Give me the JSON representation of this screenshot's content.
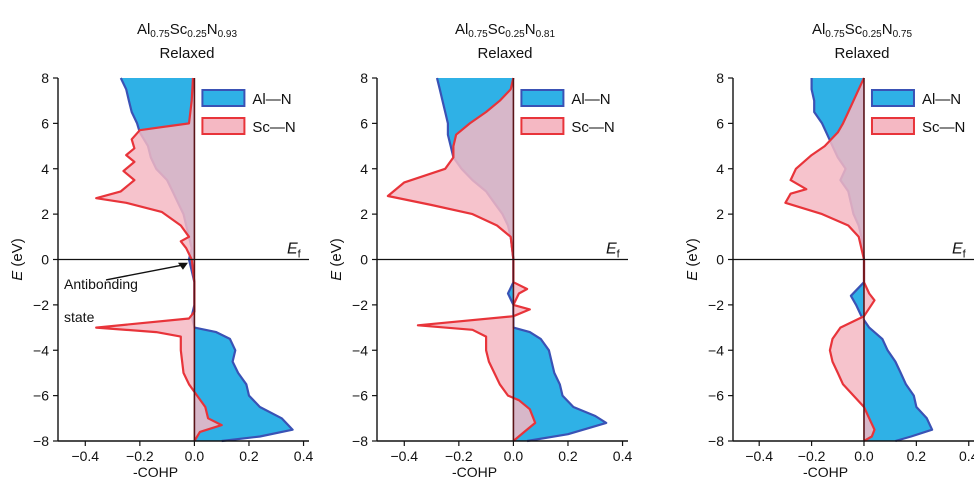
{
  "figure": {
    "panels": [
      {
        "title": {
          "el1": "Al",
          "s1": "0.75",
          "el2": "Sc",
          "s2": "0.25",
          "el3": "N",
          "s3": "0.93",
          "line2": "Relaxed"
        }
      },
      {
        "title": {
          "el1": "Al",
          "s1": "0.75",
          "el2": "Sc",
          "s2": "0.25",
          "el3": "N",
          "s3": "0.81",
          "line2": "Relaxed"
        }
      },
      {
        "title": {
          "el1": "Al",
          "s1": "0.75",
          "el2": "Sc",
          "s2": "0.25",
          "el3": "N",
          "s3": "0.75",
          "line2": "Relaxed"
        }
      }
    ]
  },
  "chart_data": [
    {
      "type": "area",
      "title": "Al0.75Sc0.25N0.93 Relaxed",
      "xlabel": "-COHP",
      "ylabel": "E (eV)",
      "xlim": [
        -0.5,
        0.42
      ],
      "ylim": [
        -8,
        8
      ],
      "xticks": [
        -0.4,
        -0.2,
        0.0,
        0.2,
        0.4
      ],
      "yticks": [
        -8,
        -6,
        -4,
        -2,
        0,
        2,
        4,
        6,
        8
      ],
      "fermi_label": "E_f",
      "legend": {
        "position": "top-right",
        "entries": [
          "Al—N",
          "Sc—N"
        ]
      },
      "annotation": {
        "text_line1": "Antibonding",
        "text_line2": "state",
        "points_to": [
          -0.02,
          -0.1
        ]
      },
      "colors": {
        "Al—N": {
          "fill": "#2fb1e6",
          "edge": "#3a52b5"
        },
        "Sc—N": {
          "fill": "#f5b8c3",
          "edge": "#e8343a"
        }
      },
      "series": [
        {
          "name": "Al—N",
          "points": [
            [
              -0.27,
              8
            ],
            [
              -0.25,
              7.5
            ],
            [
              -0.24,
              7.0
            ],
            [
              -0.23,
              6.5
            ],
            [
              -0.21,
              6.0
            ],
            [
              -0.2,
              5.6
            ],
            [
              -0.17,
              5.0
            ],
            [
              -0.16,
              4.5
            ],
            [
              -0.14,
              4.0
            ],
            [
              -0.1,
              3.5
            ],
            [
              -0.08,
              3.0
            ],
            [
              -0.06,
              2.5
            ],
            [
              -0.04,
              2.0
            ],
            [
              -0.03,
              1.5
            ],
            [
              -0.02,
              1.0
            ],
            [
              -0.01,
              0.5
            ],
            [
              -0.02,
              0
            ],
            [
              -0.01,
              -0.5
            ],
            [
              0,
              -1
            ],
            [
              0,
              -2
            ],
            [
              -0.01,
              -2.5
            ],
            [
              0,
              -3
            ],
            [
              0.08,
              -3.2
            ],
            [
              0.13,
              -3.5
            ],
            [
              0.15,
              -4.0
            ],
            [
              0.14,
              -4.5
            ],
            [
              0.16,
              -5.0
            ],
            [
              0.19,
              -5.5
            ],
            [
              0.2,
              -6.0
            ],
            [
              0.24,
              -6.5
            ],
            [
              0.32,
              -7.0
            ],
            [
              0.36,
              -7.5
            ],
            [
              0.24,
              -7.8
            ],
            [
              0.1,
              -8
            ]
          ]
        },
        {
          "name": "Sc—N",
          "points": [
            [
              -0.005,
              8
            ],
            [
              -0.01,
              7.0
            ],
            [
              -0.02,
              6.0
            ],
            [
              -0.08,
              5.9
            ],
            [
              -0.2,
              5.7
            ],
            [
              -0.23,
              5.3
            ],
            [
              -0.22,
              4.9
            ],
            [
              -0.25,
              4.6
            ],
            [
              -0.22,
              4.3
            ],
            [
              -0.26,
              3.9
            ],
            [
              -0.22,
              3.5
            ],
            [
              -0.27,
              3.0
            ],
            [
              -0.36,
              2.7
            ],
            [
              -0.25,
              2.5
            ],
            [
              -0.12,
              2.1
            ],
            [
              -0.05,
              1.5
            ],
            [
              -0.02,
              1.0
            ],
            [
              -0.05,
              0.8
            ],
            [
              -0.03,
              0.5
            ],
            [
              -0.01,
              0
            ],
            [
              0,
              -1
            ],
            [
              0,
              -2.3
            ],
            [
              -0.02,
              -2.6
            ],
            [
              -0.36,
              -3.0
            ],
            [
              -0.14,
              -3.2
            ],
            [
              -0.05,
              -3.4
            ],
            [
              -0.05,
              -4
            ],
            [
              -0.04,
              -5
            ],
            [
              -0.02,
              -5.5
            ],
            [
              0.01,
              -6.0
            ],
            [
              0.04,
              -6.5
            ],
            [
              0.05,
              -7.0
            ],
            [
              0.1,
              -7.3
            ],
            [
              0.02,
              -7.6
            ],
            [
              0,
              -8
            ]
          ]
        }
      ]
    },
    {
      "type": "area",
      "title": "Al0.75Sc0.25N0.81 Relaxed",
      "xlabel": "-COHP",
      "ylabel": "E (eV)",
      "xlim": [
        -0.5,
        0.42
      ],
      "ylim": [
        -8,
        8
      ],
      "xticks": [
        -0.4,
        -0.2,
        0.0,
        0.2,
        0.4
      ],
      "yticks": [
        -8,
        -6,
        -4,
        -2,
        0,
        2,
        4,
        6,
        8
      ],
      "fermi_label": "E_f",
      "legend": {
        "position": "top-right",
        "entries": [
          "Al—N",
          "Sc—N"
        ]
      },
      "colors": {
        "Al—N": {
          "fill": "#2fb1e6",
          "edge": "#3a52b5"
        },
        "Sc—N": {
          "fill": "#f5b8c3",
          "edge": "#e8343a"
        }
      },
      "series": [
        {
          "name": "Al—N",
          "points": [
            [
              -0.28,
              8
            ],
            [
              -0.27,
              7.5
            ],
            [
              -0.26,
              7.0
            ],
            [
              -0.25,
              6.5
            ],
            [
              -0.24,
              6.0
            ],
            [
              -0.24,
              5.5
            ],
            [
              -0.23,
              5.0
            ],
            [
              -0.22,
              4.5
            ],
            [
              -0.19,
              4.0
            ],
            [
              -0.15,
              3.5
            ],
            [
              -0.1,
              3.0
            ],
            [
              -0.07,
              2.5
            ],
            [
              -0.04,
              2.0
            ],
            [
              -0.02,
              1.5
            ],
            [
              -0.01,
              1.0
            ],
            [
              0,
              0
            ],
            [
              0,
              -1
            ],
            [
              -0.02,
              -1.5
            ],
            [
              0,
              -2
            ],
            [
              0,
              -3
            ],
            [
              0.06,
              -3.2
            ],
            [
              0.1,
              -3.5
            ],
            [
              0.13,
              -4.0
            ],
            [
              0.14,
              -4.5
            ],
            [
              0.15,
              -5.0
            ],
            [
              0.17,
              -5.5
            ],
            [
              0.18,
              -6.0
            ],
            [
              0.22,
              -6.5
            ],
            [
              0.3,
              -6.9
            ],
            [
              0.34,
              -7.2
            ],
            [
              0.2,
              -7.7
            ],
            [
              0.05,
              -8
            ]
          ]
        },
        {
          "name": "Sc—N",
          "points": [
            [
              0,
              8
            ],
            [
              -0.01,
              7.5
            ],
            [
              -0.05,
              7.0
            ],
            [
              -0.1,
              6.5
            ],
            [
              -0.16,
              6.0
            ],
            [
              -0.21,
              5.5
            ],
            [
              -0.22,
              5.0
            ],
            [
              -0.22,
              4.5
            ],
            [
              -0.25,
              4.0
            ],
            [
              -0.4,
              3.4
            ],
            [
              -0.46,
              2.8
            ],
            [
              -0.3,
              2.4
            ],
            [
              -0.15,
              2.0
            ],
            [
              -0.06,
              1.5
            ],
            [
              -0.01,
              1.0
            ],
            [
              0,
              0
            ],
            [
              0,
              -1
            ],
            [
              0.05,
              -1.3
            ],
            [
              0.02,
              -1.5
            ],
            [
              0,
              -2
            ],
            [
              0.06,
              -2.2
            ],
            [
              0,
              -2.5
            ],
            [
              -0.35,
              -2.9
            ],
            [
              -0.15,
              -3.1
            ],
            [
              -0.1,
              -3.4
            ],
            [
              -0.1,
              -4
            ],
            [
              -0.09,
              -4.5
            ],
            [
              -0.07,
              -5
            ],
            [
              -0.05,
              -5.5
            ],
            [
              -0.02,
              -6.0
            ],
            [
              0.02,
              -6.2
            ],
            [
              0.06,
              -6.6
            ],
            [
              0.08,
              -7.2
            ],
            [
              0.04,
              -7.6
            ],
            [
              0,
              -8
            ]
          ]
        }
      ]
    },
    {
      "type": "area",
      "title": "Al0.75Sc0.25N0.75 Relaxed",
      "xlabel": "-COHP",
      "ylabel": "E (eV)",
      "xlim": [
        -0.5,
        0.42
      ],
      "ylim": [
        -8,
        8
      ],
      "xticks": [
        -0.4,
        -0.2,
        0.0,
        0.2,
        0.4
      ],
      "yticks": [
        -8,
        -6,
        -4,
        -2,
        0,
        2,
        4,
        6,
        8
      ],
      "fermi_label": "E_f",
      "legend": {
        "position": "top-right",
        "entries": [
          "Al—N",
          "Sc—N"
        ]
      },
      "colors": {
        "Al—N": {
          "fill": "#2fb1e6",
          "edge": "#3a52b5"
        },
        "Sc—N": {
          "fill": "#f5b8c3",
          "edge": "#e8343a"
        }
      },
      "series": [
        {
          "name": "Al—N",
          "points": [
            [
              -0.2,
              8
            ],
            [
              -0.2,
              7.5
            ],
            [
              -0.19,
              7.0
            ],
            [
              -0.19,
              6.5
            ],
            [
              -0.16,
              6.0
            ],
            [
              -0.14,
              5.5
            ],
            [
              -0.12,
              5.0
            ],
            [
              -0.1,
              4.5
            ],
            [
              -0.07,
              4.0
            ],
            [
              -0.09,
              3.5
            ],
            [
              -0.06,
              3.0
            ],
            [
              -0.05,
              2.5
            ],
            [
              -0.04,
              2.0
            ],
            [
              -0.02,
              1.5
            ],
            [
              -0.01,
              1.0
            ],
            [
              0,
              0
            ],
            [
              0,
              -1
            ],
            [
              -0.05,
              -1.6
            ],
            [
              -0.03,
              -2.0
            ],
            [
              -0.01,
              -2.5
            ],
            [
              0.02,
              -3.0
            ],
            [
              0.07,
              -3.5
            ],
            [
              0.09,
              -4.0
            ],
            [
              0.12,
              -4.5
            ],
            [
              0.14,
              -5.0
            ],
            [
              0.16,
              -5.5
            ],
            [
              0.19,
              -6.0
            ],
            [
              0.2,
              -6.5
            ],
            [
              0.24,
              -7.0
            ],
            [
              0.26,
              -7.5
            ],
            [
              0.18,
              -7.8
            ],
            [
              0.12,
              -8
            ]
          ]
        },
        {
          "name": "Sc—N",
          "points": [
            [
              0,
              8
            ],
            [
              -0.02,
              7.5
            ],
            [
              -0.04,
              7.0
            ],
            [
              -0.06,
              6.5
            ],
            [
              -0.08,
              6.0
            ],
            [
              -0.1,
              5.6
            ],
            [
              -0.15,
              5.0
            ],
            [
              -0.2,
              4.6
            ],
            [
              -0.26,
              4.0
            ],
            [
              -0.28,
              3.5
            ],
            [
              -0.22,
              3.1
            ],
            [
              -0.28,
              2.9
            ],
            [
              -0.3,
              2.5
            ],
            [
              -0.16,
              2.0
            ],
            [
              -0.06,
              1.5
            ],
            [
              -0.02,
              1.0
            ],
            [
              0,
              0
            ],
            [
              0,
              -1
            ],
            [
              0.02,
              -1.5
            ],
            [
              0.04,
              -1.8
            ],
            [
              0,
              -2.5
            ],
            [
              -0.09,
              -3.0
            ],
            [
              -0.12,
              -3.5
            ],
            [
              -0.13,
              -4.0
            ],
            [
              -0.12,
              -4.5
            ],
            [
              -0.1,
              -5.0
            ],
            [
              -0.08,
              -5.5
            ],
            [
              -0.04,
              -6.0
            ],
            [
              0,
              -6.5
            ],
            [
              0.02,
              -7.0
            ],
            [
              0.04,
              -7.5
            ],
            [
              0.03,
              -7.8
            ],
            [
              0,
              -8
            ]
          ]
        }
      ]
    }
  ]
}
